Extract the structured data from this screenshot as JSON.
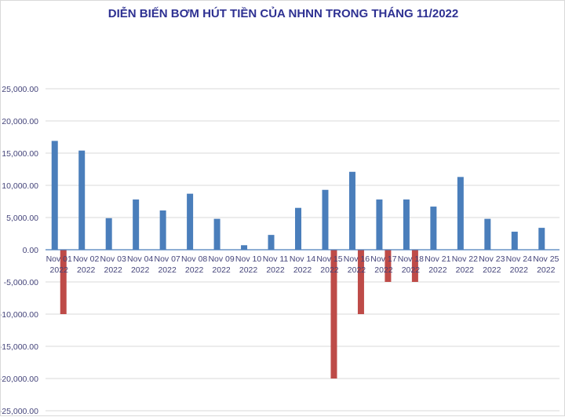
{
  "chart_data": {
    "type": "bar",
    "title": "DIỄN BIẾN BƠM HÚT TIỀN CỦA NHNN TRONG THÁNG 11/2022",
    "xlabel": "",
    "ylabel": "",
    "ylim": [
      -25000,
      25000
    ],
    "ytick_step": 5000,
    "yticks": [
      "25,000.00",
      "20,000.00",
      "15,000.00",
      "10,000.00",
      "5,000.00",
      "0.00",
      "-5,000.00",
      "-10,000.00",
      "-15,000.00",
      "-20,000.00",
      "-25,000.00"
    ],
    "grid": true,
    "legend": "none",
    "categories": [
      [
        "Nov 01",
        "2022"
      ],
      [
        "Nov 02",
        "2022"
      ],
      [
        "Nov 03",
        "2022"
      ],
      [
        "Nov 04",
        "2022"
      ],
      [
        "Nov 07",
        "2022"
      ],
      [
        "Nov 08",
        "2022"
      ],
      [
        "Nov 09",
        "2022"
      ],
      [
        "Nov 10",
        "2022"
      ],
      [
        "Nov 11",
        "2022"
      ],
      [
        "Nov 14",
        "2022"
      ],
      [
        "Nov 15",
        "2022"
      ],
      [
        "Nov 16",
        "2022"
      ],
      [
        "Nov 17",
        "2022"
      ],
      [
        "Nov 18",
        "2022"
      ],
      [
        "Nov 21",
        "2022"
      ],
      [
        "Nov 22",
        "2022"
      ],
      [
        "Nov 23",
        "2022"
      ],
      [
        "Nov 24",
        "2022"
      ],
      [
        "Nov 25",
        "2022"
      ]
    ],
    "series": [
      {
        "color": "#4a7ebb",
        "values": [
          16900,
          15400,
          4900,
          7800,
          6100,
          8700,
          4800,
          700,
          2300,
          6500,
          9300,
          12100,
          7800,
          7800,
          6700,
          11300,
          4800,
          2800,
          3400
        ]
      },
      {
        "color": "#be4b48",
        "values": [
          -10000,
          0,
          0,
          0,
          0,
          0,
          0,
          0,
          0,
          0,
          -20000,
          -10000,
          -5000,
          -5000,
          0,
          0,
          0,
          0,
          0
        ]
      }
    ]
  }
}
